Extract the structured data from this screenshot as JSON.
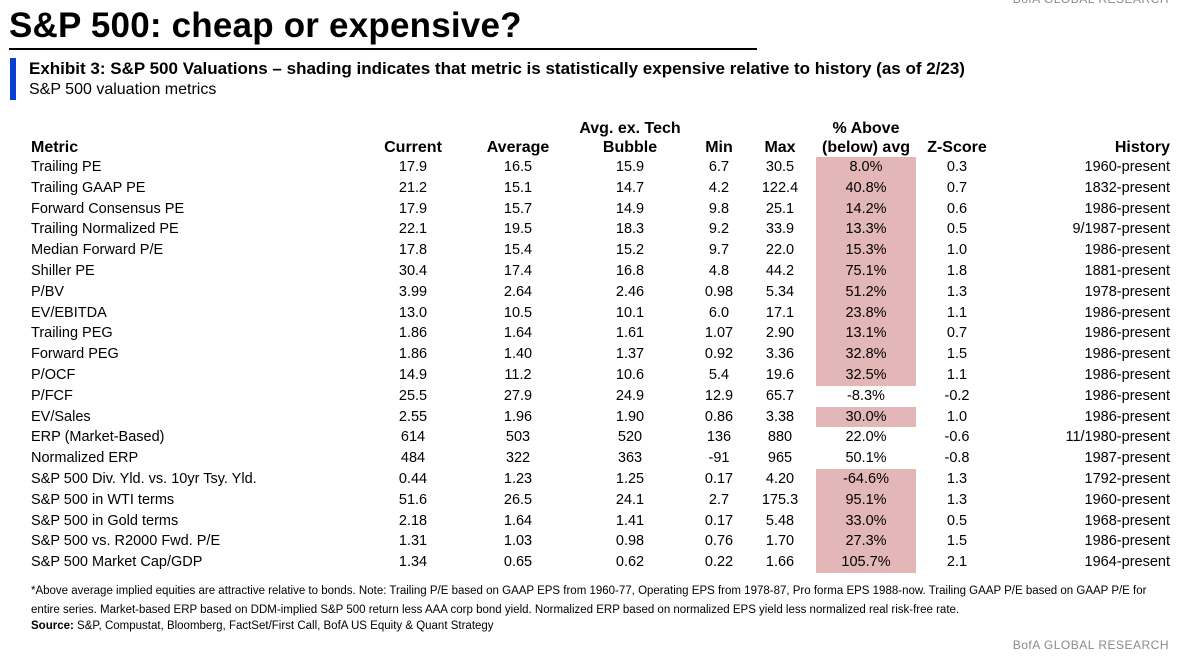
{
  "header": {
    "brand": "BofA GLOBAL RESEARCH",
    "page_title": "S&P 500: cheap or expensive?",
    "exhibit_title": "Exhibit 3: S&P 500 Valuations – shading indicates that metric is statistically expensive relative to history (as of 2/23)",
    "exhibit_subtitle": "S&P 500 valuation metrics"
  },
  "colors": {
    "accent": "#0a3fd6",
    "shading": "#e3b7b7"
  },
  "table": {
    "columns": {
      "metric": "Metric",
      "current": "Current",
      "average": "Average",
      "ex_bubble_line1": "Avg. ex. Tech",
      "ex_bubble_line2": "Bubble",
      "min": "Min",
      "max": "Max",
      "pct_line1": "% Above",
      "pct_line2": "(below) avg",
      "z": "Z-Score",
      "history": "History"
    },
    "rows": [
      {
        "metric": "Trailing PE",
        "current": "17.9",
        "average": "16.5",
        "ex_bubble": "15.9",
        "min": "6.7",
        "max": "30.5",
        "pct": "8.0%",
        "shaded": true,
        "z": "0.3",
        "history": "1960-present"
      },
      {
        "metric": "Trailing GAAP PE",
        "current": "21.2",
        "average": "15.1",
        "ex_bubble": "14.7",
        "min": "4.2",
        "max": "122.4",
        "pct": "40.8%",
        "shaded": true,
        "z": "0.7",
        "history": "1832-present"
      },
      {
        "metric": "Forward Consensus PE",
        "current": "17.9",
        "average": "15.7",
        "ex_bubble": "14.9",
        "min": "9.8",
        "max": "25.1",
        "pct": "14.2%",
        "shaded": true,
        "z": "0.6",
        "history": "1986-present"
      },
      {
        "metric": "Trailing Normalized PE",
        "current": "22.1",
        "average": "19.5",
        "ex_bubble": "18.3",
        "min": "9.2",
        "max": "33.9",
        "pct": "13.3%",
        "shaded": true,
        "z": "0.5",
        "history": "9/1987-present"
      },
      {
        "metric": "Median Forward P/E",
        "current": "17.8",
        "average": "15.4",
        "ex_bubble": "15.2",
        "min": "9.7",
        "max": "22.0",
        "pct": "15.3%",
        "shaded": true,
        "z": "1.0",
        "history": "1986-present"
      },
      {
        "metric": "Shiller PE",
        "current": "30.4",
        "average": "17.4",
        "ex_bubble": "16.8",
        "min": "4.8",
        "max": "44.2",
        "pct": "75.1%",
        "shaded": true,
        "z": "1.8",
        "history": "1881-present"
      },
      {
        "metric": "P/BV",
        "current": "3.99",
        "average": "2.64",
        "ex_bubble": "2.46",
        "min": "0.98",
        "max": "5.34",
        "pct": "51.2%",
        "shaded": true,
        "z": "1.3",
        "history": "1978-present"
      },
      {
        "metric": "EV/EBITDA",
        "current": "13.0",
        "average": "10.5",
        "ex_bubble": "10.1",
        "min": "6.0",
        "max": "17.1",
        "pct": "23.8%",
        "shaded": true,
        "z": "1.1",
        "history": "1986-present"
      },
      {
        "metric": "Trailing PEG",
        "current": "1.86",
        "average": "1.64",
        "ex_bubble": "1.61",
        "min": "1.07",
        "max": "2.90",
        "pct": "13.1%",
        "shaded": true,
        "z": "0.7",
        "history": "1986-present"
      },
      {
        "metric": "Forward PEG",
        "current": "1.86",
        "average": "1.40",
        "ex_bubble": "1.37",
        "min": "0.92",
        "max": "3.36",
        "pct": "32.8%",
        "shaded": true,
        "z": "1.5",
        "history": "1986-present"
      },
      {
        "metric": "P/OCF",
        "current": "14.9",
        "average": "11.2",
        "ex_bubble": "10.6",
        "min": "5.4",
        "max": "19.6",
        "pct": "32.5%",
        "shaded": true,
        "z": "1.1",
        "history": "1986-present"
      },
      {
        "metric": "P/FCF",
        "current": "25.5",
        "average": "27.9",
        "ex_bubble": "24.9",
        "min": "12.9",
        "max": "65.7",
        "pct": "-8.3%",
        "shaded": false,
        "z": "-0.2",
        "history": "1986-present"
      },
      {
        "metric": "EV/Sales",
        "current": "2.55",
        "average": "1.96",
        "ex_bubble": "1.90",
        "min": "0.86",
        "max": "3.38",
        "pct": "30.0%",
        "shaded": true,
        "z": "1.0",
        "history": "1986-present"
      },
      {
        "metric": "ERP (Market-Based)",
        "current": "614",
        "average": "503",
        "ex_bubble": "520",
        "min": "136",
        "max": "880",
        "pct": "22.0%",
        "shaded": false,
        "z": "-0.6",
        "history": "11/1980-present"
      },
      {
        "metric": "Normalized ERP",
        "current": "484",
        "average": "322",
        "ex_bubble": "363",
        "min": "-91",
        "max": "965",
        "pct": "50.1%",
        "shaded": false,
        "z": "-0.8",
        "history": "1987-present"
      },
      {
        "metric": "S&P 500 Div. Yld. vs. 10yr Tsy. Yld.",
        "current": "0.44",
        "average": "1.23",
        "ex_bubble": "1.25",
        "min": "0.17",
        "max": "4.20",
        "pct": "-64.6%",
        "shaded": true,
        "z": "1.3",
        "history": "1792-present"
      },
      {
        "metric": "S&P 500 in WTI terms",
        "current": "51.6",
        "average": "26.5",
        "ex_bubble": "24.1",
        "min": "2.7",
        "max": "175.3",
        "pct": "95.1%",
        "shaded": true,
        "z": "1.3",
        "history": "1960-present"
      },
      {
        "metric": "S&P 500 in Gold terms",
        "current": "2.18",
        "average": "1.64",
        "ex_bubble": "1.41",
        "min": "0.17",
        "max": "5.48",
        "pct": "33.0%",
        "shaded": true,
        "z": "0.5",
        "history": "1968-present"
      },
      {
        "metric": "S&P 500 vs. R2000 Fwd. P/E",
        "current": "1.31",
        "average": "1.03",
        "ex_bubble": "0.98",
        "min": "0.76",
        "max": "1.70",
        "pct": "27.3%",
        "shaded": true,
        "z": "1.5",
        "history": "1986-present"
      },
      {
        "metric": "S&P 500 Market Cap/GDP",
        "current": "1.34",
        "average": "0.65",
        "ex_bubble": "0.62",
        "min": "0.22",
        "max": "1.66",
        "pct": "105.7%",
        "shaded": true,
        "z": "2.1",
        "history": "1964-present"
      }
    ]
  },
  "footnote": "*Above average implied equities are attractive relative to bonds.  Note: Trailing P/E based on GAAP EPS from 1960-77, Operating EPS from 1978-87, Pro forma EPS 1988-now. Trailing GAAP P/E based on GAAP P/E for entire series. Market-based ERP based on DDM-implied S&P 500 return less AAA corp bond yield. Normalized ERP based on normalized EPS yield less normalized real risk-free rate.",
  "source": {
    "label": "Source:",
    "text": " S&P, Compustat, Bloomberg, FactSet/First Call, BofA US Equity & Quant Strategy"
  }
}
